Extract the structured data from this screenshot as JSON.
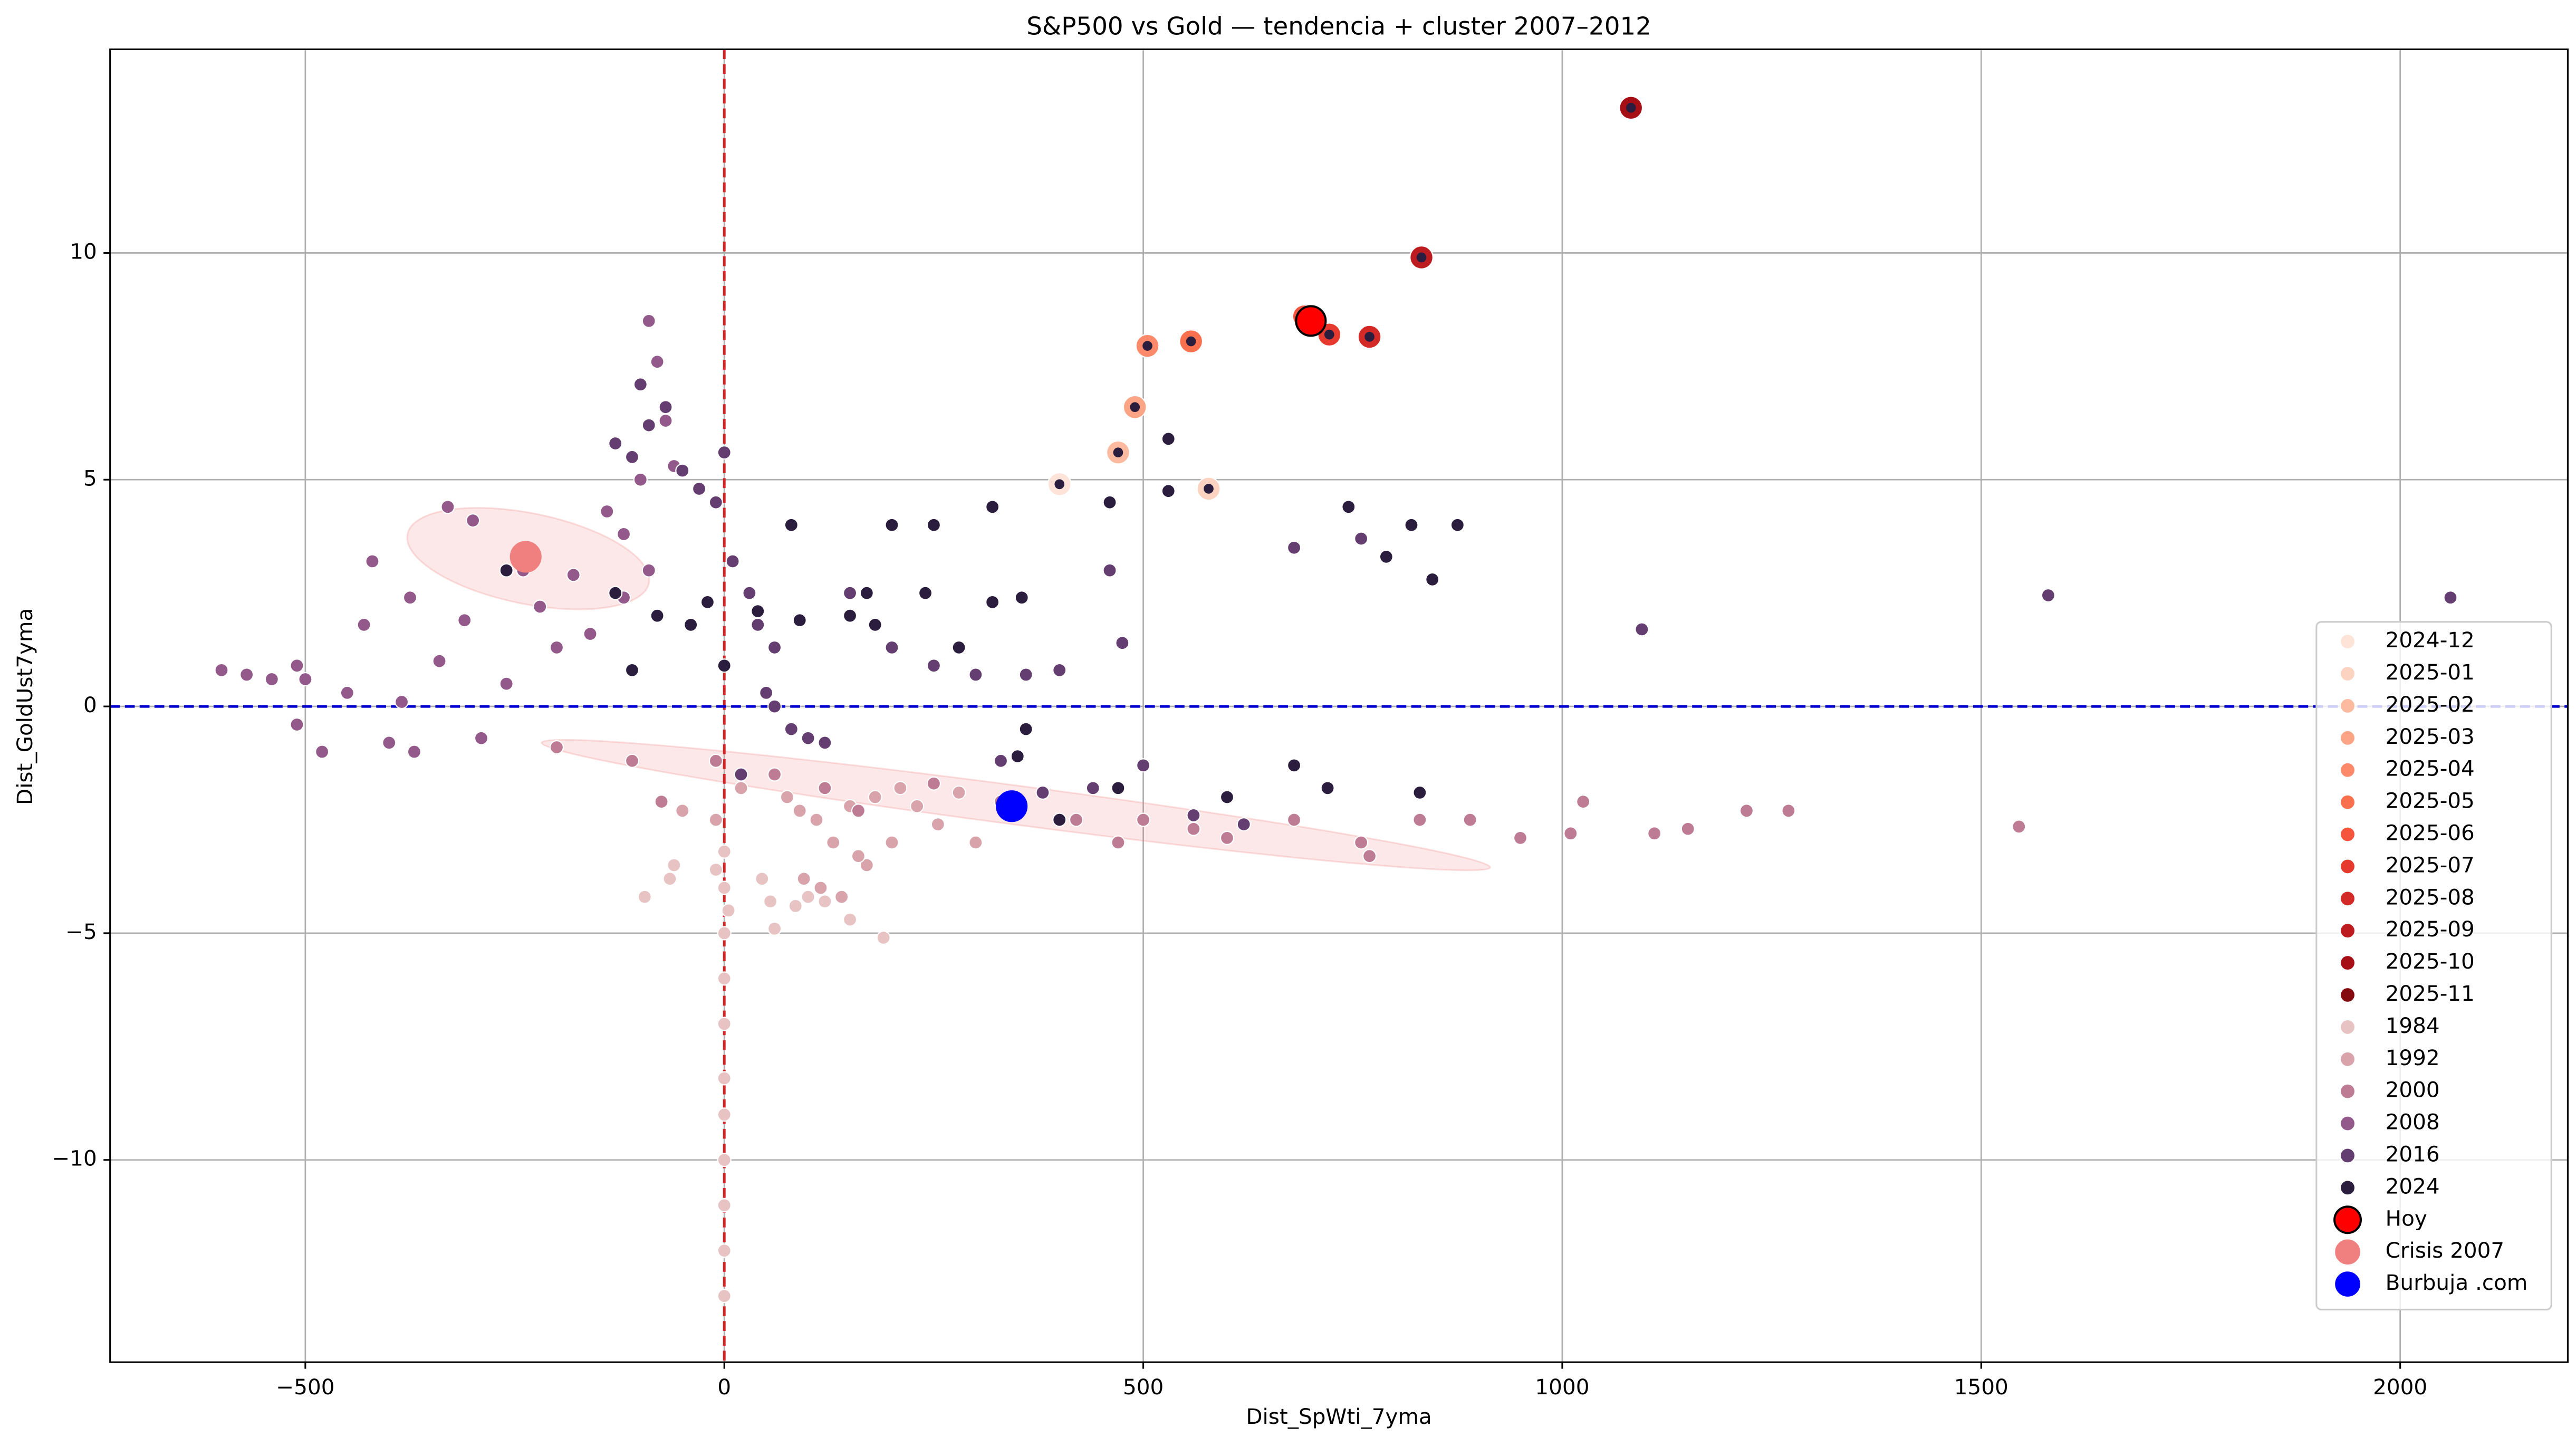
{
  "chart_data": {
    "type": "scatter",
    "title": "S&P500 vs Gold — tendencia + cluster 2007–2012",
    "xlabel": "Dist_SpWti_7yma",
    "ylabel": "Dist_GoldUst7yma",
    "xlim": [
      -733,
      2200
    ],
    "ylim": [
      -14.46,
      14.49
    ],
    "xticks": [
      {
        "value": -500,
        "label": "−500"
      },
      0,
      500,
      1000,
      1500,
      2000
    ],
    "yticks": [
      {
        "value": -10,
        "label": "−10"
      },
      {
        "value": -5,
        "label": "−5"
      },
      0,
      5,
      10
    ],
    "grid": true,
    "legend": "lower right",
    "vline": {
      "value": 0,
      "color": "#d62728"
    },
    "hline": {
      "value": 0,
      "color": "#0000cc"
    },
    "ellipses": [
      {
        "x": [
          -378,
          -90
        ],
        "y": [
          3.8,
          2.72
        ],
        "minor": 1.0,
        "color": "#f08080"
      },
      {
        "x": [
          -218,
          914
        ],
        "y": [
          -0.8,
          -3.55
        ],
        "minor": 0.43,
        "color": "#f08080"
      }
    ],
    "series": [
      {
        "name": "2024-12",
        "color": "#fde3d8",
        "style": "ring",
        "inner": "#2b1d3d",
        "x": [
          400
        ],
        "values": [
          4.9
        ]
      },
      {
        "name": "2025-01",
        "color": "#fcd3c1",
        "style": "ring",
        "inner": "#2b1d3d",
        "x": [
          578
        ],
        "values": [
          4.8
        ]
      },
      {
        "name": "2025-02",
        "color": "#fcbba1",
        "style": "ring",
        "inner": "#2b1d3d",
        "x": [
          470
        ],
        "values": [
          5.6
        ]
      },
      {
        "name": "2025-03",
        "color": "#fca486",
        "style": "ring",
        "inner": "#2b1d3d",
        "x": [
          490
        ],
        "values": [
          6.6
        ]
      },
      {
        "name": "2025-04",
        "color": "#fc8a6a",
        "style": "ring",
        "inner": "#2b1d3d",
        "x": [
          505
        ],
        "values": [
          7.95
        ]
      },
      {
        "name": "2025-05",
        "color": "#f9704f",
        "style": "ring",
        "inner": "#2b1d3d",
        "x": [
          557
        ],
        "values": [
          8.05
        ]
      },
      {
        "name": "2025-06",
        "color": "#f5553c",
        "style": "ring",
        "inner": "#2b1d3d",
        "x": [
          692
        ],
        "values": [
          8.6
        ]
      },
      {
        "name": "2025-07",
        "color": "#e63a2f",
        "style": "ring",
        "inner": "#2b1d3d",
        "x": [
          722
        ],
        "values": [
          8.2
        ]
      },
      {
        "name": "2025-08",
        "color": "#d42a27",
        "style": "ring",
        "inner": "#2b1d3d",
        "x": [
          770
        ],
        "values": [
          8.15
        ]
      },
      {
        "name": "2025-09",
        "color": "#bc1b1f",
        "style": "ring",
        "inner": "#2b1d3d",
        "x": [
          832
        ],
        "values": [
          9.9
        ]
      },
      {
        "name": "2025-10",
        "color": "#a50f15",
        "style": "ring",
        "inner": "#2b1d3d",
        "x": [
          1082
        ],
        "values": [
          13.2
        ]
      },
      {
        "name": "2025-11",
        "color": "#850a10",
        "style": "ring",
        "inner": "#2b1d3d",
        "x": [
          700
        ],
        "values": [
          8.5
        ]
      },
      {
        "name": "1984",
        "color": "#e8c3c3",
        "style": "dot",
        "x": [
          0,
          0,
          0,
          0,
          0,
          0,
          0,
          0,
          0,
          0,
          0,
          -10,
          5,
          -60,
          -65,
          -95,
          55,
          60,
          85,
          100,
          120,
          190,
          150,
          45
        ],
        "values": [
          -3.2,
          -4,
          -5,
          -6,
          -7,
          -8.2,
          -9,
          -10,
          -11,
          -12,
          -13,
          -3.6,
          -4.5,
          -3.5,
          -3.8,
          -4.2,
          -4.3,
          -4.9,
          -4.4,
          -4.2,
          -4.3,
          -5.1,
          -4.7,
          -3.8
        ]
      },
      {
        "name": "1992",
        "color": "#d8a3ab",
        "style": "dot",
        "x": [
          75,
          90,
          110,
          130,
          150,
          170,
          200,
          95,
          115,
          140,
          160,
          180,
          210,
          230,
          255,
          280,
          300,
          -10,
          -50,
          20
        ],
        "values": [
          -2,
          -2.3,
          -2.5,
          -3,
          -2.2,
          -3.5,
          -3,
          -3.8,
          -4,
          -4.2,
          -3.3,
          -2,
          -1.8,
          -2.2,
          -2.6,
          -1.9,
          -3,
          -2.5,
          -2.3,
          -1.8
        ]
      },
      {
        "name": "2000",
        "color": "#bd7c93",
        "style": "dot",
        "x": [
          -200,
          -110,
          -75,
          -10,
          60,
          120,
          160,
          250,
          330,
          420,
          500,
          560,
          600,
          680,
          760,
          830,
          890,
          950,
          1010,
          1025,
          1110,
          1150,
          1220,
          1270,
          1545,
          470,
          770
        ],
        "values": [
          -0.9,
          -1.2,
          -2.1,
          -1.2,
          -1.5,
          -1.8,
          -2.3,
          -1.7,
          -2.1,
          -2.5,
          -2.5,
          -2.7,
          -2.9,
          -2.5,
          -3,
          -2.5,
          -2.5,
          -2.9,
          -2.8,
          -2.1,
          -2.8,
          -2.7,
          -2.3,
          -2.3,
          -2.65,
          -3,
          -3.3
        ]
      },
      {
        "name": "2008",
        "color": "#93598a",
        "style": "dot",
        "x": [
          -600,
          -570,
          -540,
          -510,
          -500,
          -510,
          -480,
          -450,
          -430,
          -420,
          -400,
          -385,
          -375,
          -340,
          -330,
          -310,
          -300,
          -290,
          -260,
          -240,
          -220,
          -200,
          -180,
          -160,
          -140,
          -120,
          -100,
          -90,
          -80,
          -70,
          -60,
          -90,
          -120,
          -370
        ],
        "values": [
          0.8,
          0.7,
          0.6,
          0.9,
          0.6,
          -0.4,
          -1,
          0.3,
          1.8,
          3.2,
          -0.8,
          0.1,
          2.4,
          1,
          4.4,
          1.9,
          4.1,
          -0.7,
          0.5,
          3,
          2.2,
          1.3,
          2.9,
          1.6,
          4.3,
          3.8,
          5,
          8.5,
          7.6,
          6.3,
          5.3,
          3,
          2.4,
          -1
        ]
      },
      {
        "name": "2016",
        "color": "#643e70",
        "style": "dot",
        "x": [
          -130,
          -110,
          -100,
          -90,
          -70,
          -50,
          -30,
          -10,
          0,
          10,
          30,
          40,
          60,
          50,
          60,
          80,
          100,
          120,
          150,
          200,
          250,
          300,
          360,
          400,
          475,
          460,
          330,
          380,
          440,
          500,
          560,
          620,
          680,
          760,
          1095,
          1580,
          2060,
          20
        ],
        "values": [
          5.8,
          5.5,
          7.1,
          6.2,
          6.6,
          5.2,
          4.8,
          4.5,
          5.6,
          3.2,
          2.5,
          1.8,
          1.3,
          0.3,
          0,
          -0.5,
          -0.7,
          -0.8,
          2.5,
          1.3,
          0.9,
          0.7,
          0.7,
          0.8,
          1.4,
          3,
          -1.2,
          -1.9,
          -1.8,
          -1.3,
          -2.4,
          -2.6,
          3.5,
          3.7,
          1.7,
          2.45,
          2.4,
          -1.5
        ]
      },
      {
        "name": "2024",
        "color": "#2b1d3d",
        "style": "dot",
        "x": [
          -40,
          -20,
          0,
          40,
          80,
          90,
          150,
          170,
          180,
          200,
          240,
          250,
          280,
          320,
          320,
          355,
          360,
          350,
          400,
          460,
          470,
          530,
          530,
          600,
          680,
          720,
          745,
          790,
          820,
          845,
          875,
          830,
          -80,
          -110,
          -260,
          -130
        ],
        "values": [
          1.8,
          2.3,
          0.9,
          2.1,
          4,
          1.9,
          2,
          2.5,
          1.8,
          4,
          2.5,
          4,
          1.3,
          4.4,
          2.3,
          2.4,
          -0.5,
          -1.1,
          -2.5,
          4.5,
          -1.8,
          5.9,
          4.75,
          -2,
          -1.3,
          -1.8,
          4.4,
          3.3,
          4,
          2.8,
          4,
          -1.9,
          2,
          0.8,
          3,
          2.5
        ]
      },
      {
        "name": "Hoy",
        "color": "#ff0000",
        "edgecolor": "#000000",
        "style": "marker",
        "x": [
          700
        ],
        "values": [
          8.5
        ]
      },
      {
        "name": "Crisis 2007",
        "color": "#f08080",
        "style": "marker",
        "x": [
          -237
        ],
        "values": [
          3.3
        ]
      },
      {
        "name": "Burbuja .com",
        "color": "#0000ff",
        "style": "marker",
        "x": [
          343
        ],
        "values": [
          -2.2
        ]
      }
    ]
  }
}
